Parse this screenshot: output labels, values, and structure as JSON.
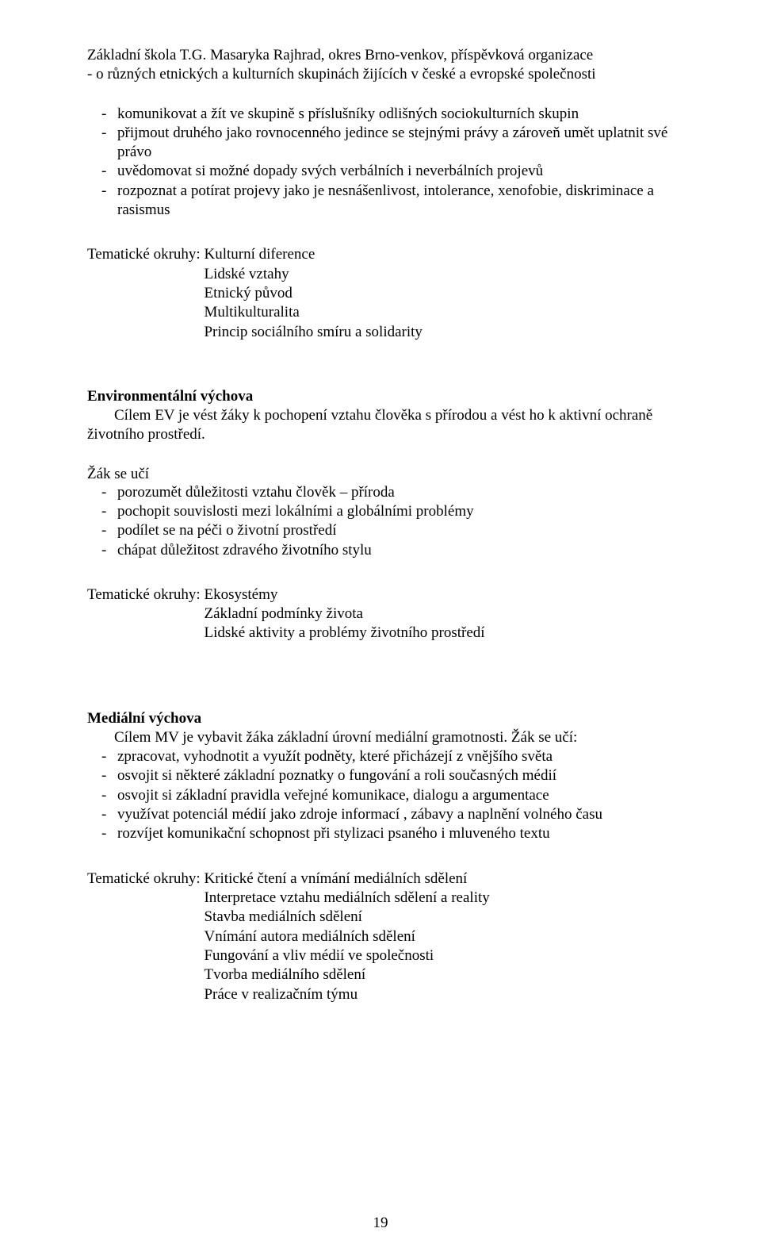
{
  "header": {
    "line1": "Základní škola T.G. Masaryka Rajhrad, okres Brno-venkov, příspěvková organizace",
    "line2_prefix": "-   ",
    "line2": "o různých etnických a kulturních skupinách žijících v české a evropské společnosti"
  },
  "top_bullets": [
    "komunikovat a žít ve skupině s příslušníky odlišných sociokulturních skupin",
    "přijmout druhého jako rovnocenného jedince se stejnými právy a zároveň umět uplatnit své právo",
    "uvědomovat si možné dopady svých verbálních i neverbálních projevů",
    "rozpoznat a potírat projevy jako je nesnášenlivost, intolerance, xenofobie, diskriminace a rasismus"
  ],
  "tematic_label": "Tematické okruhy: ",
  "tematic1": [
    "Kulturní diference",
    "Lidské vztahy",
    "Etnický původ",
    "Multikulturalita",
    "Princip sociálního smíru a solidarity"
  ],
  "env": {
    "heading": "Environmentální výchova",
    "para": "Cílem EV je vést žáky k pochopení vztahu člověka s přírodou a vést ho k aktivní ochraně životního prostředí."
  },
  "zak_label": "Žák se učí",
  "env_bullets": [
    "porozumět důležitosti vztahu člověk – příroda",
    "pochopit souvislosti mezi lokálními a globálními problémy",
    "podílet se na péči o životní prostředí",
    "chápat důležitost zdravého životního stylu"
  ],
  "tematic2": [
    "Ekosystémy",
    "Základní podmínky života",
    "Lidské aktivity a problémy životního prostředí"
  ],
  "media": {
    "heading": "Mediální výchova",
    "para": "Cílem MV je vybavit žáka základní úrovní mediální gramotnosti. Žák se učí:"
  },
  "media_bullets": [
    "zpracovat, vyhodnotit a využít podněty, které přicházejí z vnějšího světa",
    "osvojit si některé základní poznatky o fungování a roli současných médií",
    "osvojit si základní pravidla veřejné komunikace, dialogu a argumentace",
    "využívat potenciál médií jako zdroje informací , zábavy a naplnění volného času",
    "rozvíjet komunikační schopnost při stylizaci psaného i mluveného textu"
  ],
  "tematic3": [
    "Kritické čtení a vnímání mediálních sdělení",
    "Interpretace vztahu mediálních sdělení a reality",
    "Stavba mediálních sdělení",
    "Vnímání autora mediálních sdělení",
    "Fungování a vliv médií ve společnosti",
    "Tvorba mediálního sdělení",
    "Práce v realizačním týmu"
  ],
  "page_number": "19",
  "dash": "-"
}
